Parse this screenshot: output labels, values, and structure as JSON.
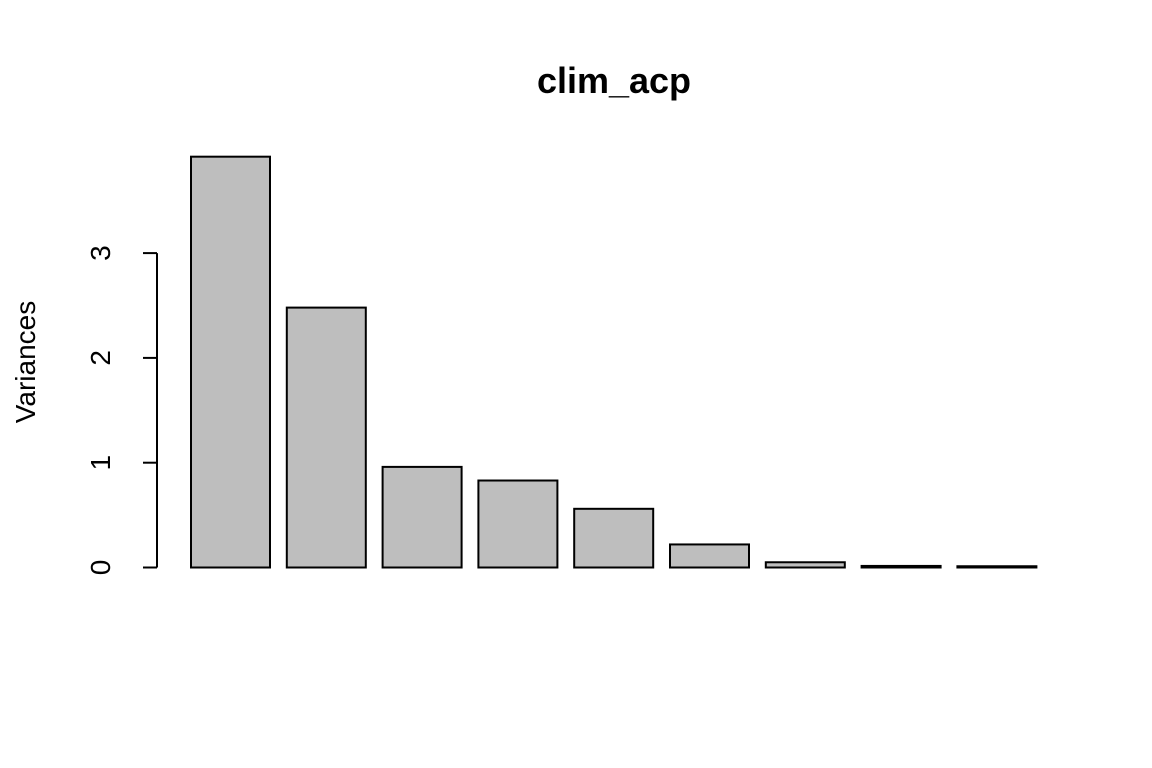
{
  "chart_data": {
    "type": "bar",
    "title": "clim_acp",
    "xlabel": "",
    "ylabel": "Variances",
    "values": [
      3.92,
      2.48,
      0.96,
      0.83,
      0.56,
      0.22,
      0.05,
      0.015,
      0.012
    ],
    "ylim": [
      0,
      3.92
    ],
    "yticks": [
      0,
      1,
      2,
      3
    ],
    "grid": false,
    "legend": "none",
    "bar_color": "#bebebe",
    "border_color": "#000000"
  }
}
